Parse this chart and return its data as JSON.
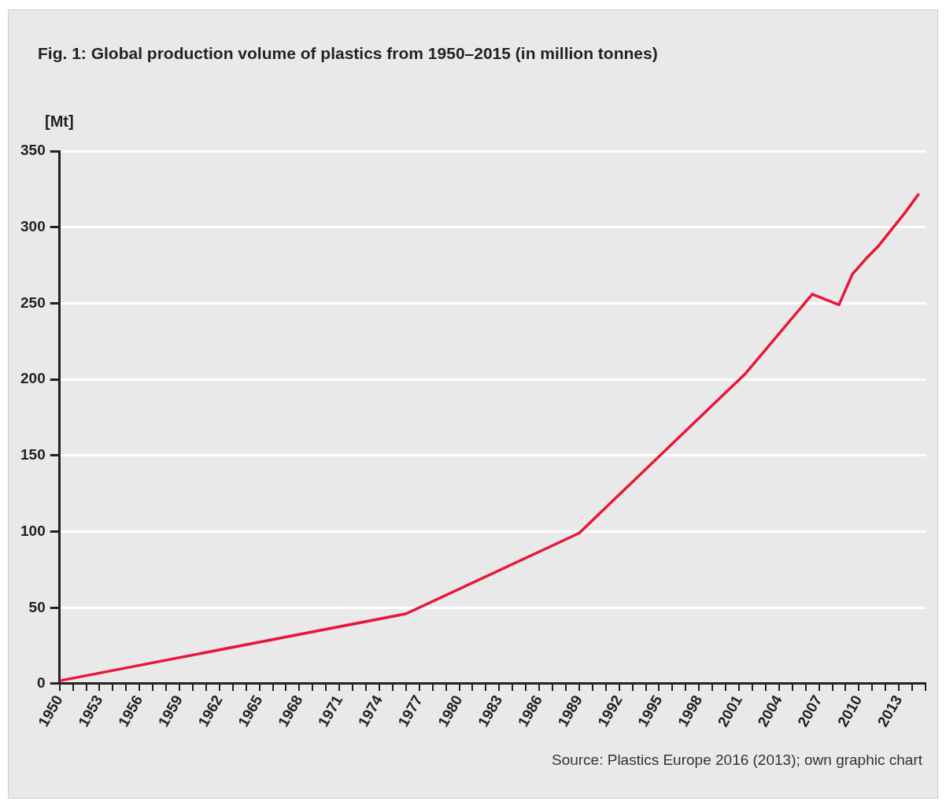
{
  "chart_data": {
    "type": "line",
    "title": "Fig. 1: Global production volume of plastics from 1950–2015 (in million tonnes)",
    "ylabel": "[Mt]",
    "annotations": [
      "Source: Plastics Europe 2016 (2013); own graphic chart"
    ],
    "x": [
      1950,
      1976,
      1989,
      2001.5,
      2006.5,
      2008.5,
      2009.5,
      2010.5,
      2011.5,
      2013.5,
      2014.5
    ],
    "series": [
      {
        "color": "#e8173a",
        "values": [
          2,
          46,
          99,
          204,
          256,
          249,
          269,
          279,
          288,
          310,
          322
        ]
      }
    ],
    "xlim": [
      1950,
      2015
    ],
    "xticks": [
      1950,
      {
        "value": 1951,
        "label": null
      },
      {
        "value": 1952,
        "label": null
      },
      1953,
      {
        "value": 1954,
        "label": null
      },
      {
        "value": 1955,
        "label": null
      },
      1956,
      {
        "value": 1957,
        "label": null
      },
      {
        "value": 1958,
        "label": null
      },
      1959,
      {
        "value": 1960,
        "label": null
      },
      {
        "value": 1961,
        "label": null
      },
      1962,
      {
        "value": 1963,
        "label": null
      },
      {
        "value": 1964,
        "label": null
      },
      1965,
      {
        "value": 1966,
        "label": null
      },
      {
        "value": 1967,
        "label": null
      },
      1968,
      {
        "value": 1969,
        "label": null
      },
      {
        "value": 1970,
        "label": null
      },
      1971,
      {
        "value": 1972,
        "label": null
      },
      {
        "value": 1973,
        "label": null
      },
      1974,
      {
        "value": 1975,
        "label": null
      },
      {
        "value": 1976,
        "label": null
      },
      1977,
      {
        "value": 1978,
        "label": null
      },
      {
        "value": 1979,
        "label": null
      },
      1980,
      {
        "value": 1981,
        "label": null
      },
      {
        "value": 1982,
        "label": null
      },
      1983,
      {
        "value": 1984,
        "label": null
      },
      {
        "value": 1985,
        "label": null
      },
      1986,
      {
        "value": 1987,
        "label": null
      },
      {
        "value": 1988,
        "label": null
      },
      1989,
      {
        "value": 1990,
        "label": null
      },
      {
        "value": 1991,
        "label": null
      },
      1992,
      {
        "value": 1993,
        "label": null
      },
      {
        "value": 1994,
        "label": null
      },
      1995,
      {
        "value": 1996,
        "label": null
      },
      {
        "value": 1997,
        "label": null
      },
      1998,
      {
        "value": 1999,
        "label": null
      },
      {
        "value": 2000,
        "label": null
      },
      2001,
      {
        "value": 2002,
        "label": null
      },
      {
        "value": 2003,
        "label": null
      },
      2004,
      {
        "value": 2005,
        "label": null
      },
      {
        "value": 2006,
        "label": null
      },
      2007,
      {
        "value": 2008,
        "label": null
      },
      {
        "value": 2009,
        "label": null
      },
      2010,
      {
        "value": 2011,
        "label": null
      },
      {
        "value": 2012,
        "label": null
      },
      2013,
      {
        "value": 2014,
        "label": null
      },
      {
        "value": 2015,
        "label": null
      }
    ],
    "ylim": [
      0,
      350
    ],
    "yticks": [
      0,
      50,
      100,
      150,
      200,
      250,
      300,
      350
    ],
    "grid": "y",
    "marker": "none",
    "line_style": "solid"
  }
}
